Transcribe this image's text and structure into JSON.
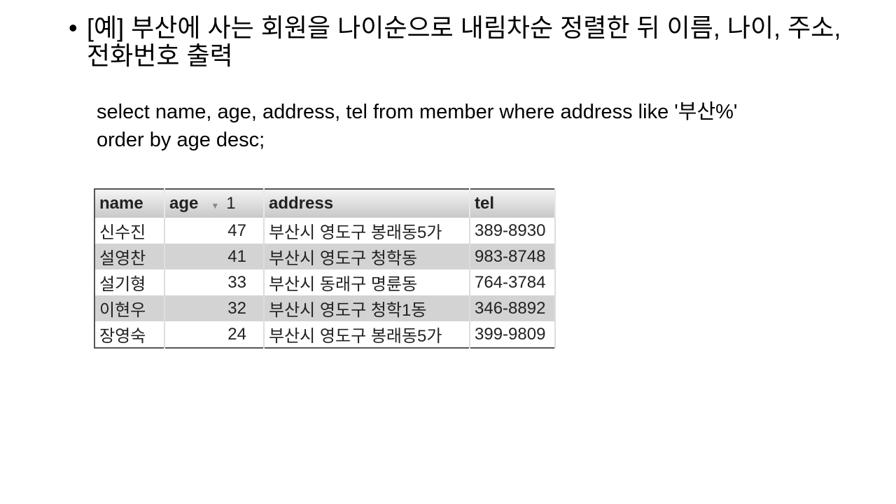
{
  "slide": {
    "bullet": "•",
    "title": "[예] 부산에 사는 회원을 나이순으로 내림차순 정렬한 뒤 이름, 나이, 주소, 전화번호 출력",
    "sql_line1": "select name, age, address, tel from member where address like '부산%'",
    "sql_line2": "order by age desc;"
  },
  "table": {
    "columns": [
      "name",
      "age",
      "address",
      "tel"
    ],
    "sort_indicator": "▼",
    "sort_order": "1",
    "rows": [
      {
        "name": "신수진",
        "age": "47",
        "address": "부산시 영도구 봉래동5가",
        "tel": "389-8930"
      },
      {
        "name": "설영찬",
        "age": "41",
        "address": "부산시 영도구 청학동",
        "tel": "983-8748"
      },
      {
        "name": "설기형",
        "age": "33",
        "address": "부산시 동래구 명륜동",
        "tel": "764-3784"
      },
      {
        "name": "이현우",
        "age": "32",
        "address": "부산시 영도구 청학1동",
        "tel": "346-8892"
      },
      {
        "name": "장영숙",
        "age": "24",
        "address": "부산시 영도구 봉래동5가",
        "tel": "399-9809"
      }
    ]
  }
}
